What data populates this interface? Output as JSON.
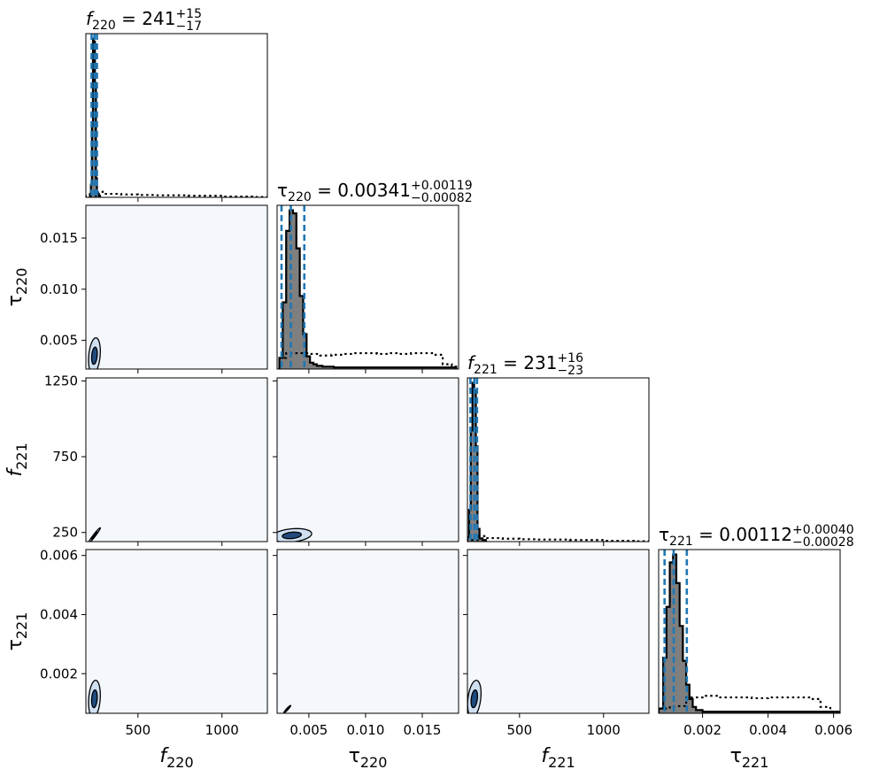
{
  "chart_data": {
    "type": "corner",
    "parameters": [
      {
        "id": "f220",
        "label_base": "f",
        "label_sub": "220",
        "italic": true,
        "range": [
          190,
          1270
        ],
        "ticks": [
          500,
          1000
        ],
        "tick_labels": [
          "500",
          "1000"
        ],
        "title_value": "241",
        "title_plus": "+15",
        "title_minus": "−17"
      },
      {
        "id": "tau220",
        "label_base": "τ",
        "label_sub": "220",
        "italic": false,
        "range": [
          0.0022,
          0.0182
        ],
        "ticks": [
          0.005,
          0.01,
          0.015
        ],
        "tick_labels": [
          "0.005",
          "0.010",
          "0.015"
        ],
        "title_value": "0.00341",
        "title_plus": "+0.00119",
        "title_minus": "−0.00082"
      },
      {
        "id": "f221",
        "label_base": "f",
        "label_sub": "221",
        "italic": true,
        "range": [
          190,
          1270
        ],
        "ticks": [
          250,
          750,
          1250
        ],
        "tick_labels": [
          "250",
          "750",
          "1250"
        ],
        "xticks": [
          500,
          1000
        ],
        "xtick_labels": [
          "500",
          "1000"
        ],
        "title_value": "231",
        "title_plus": "+16",
        "title_minus": "−23"
      },
      {
        "id": "tau221",
        "label_base": "τ",
        "label_sub": "221",
        "italic": false,
        "range": [
          0.00066,
          0.0062
        ],
        "ticks": [
          0.002,
          0.004,
          0.006
        ],
        "tick_labels": [
          "0.002",
          "0.004",
          "0.006"
        ],
        "title_value": "0.00112",
        "title_plus": "+0.00040",
        "title_minus": "−0.00028"
      }
    ],
    "diagonal": [
      {
        "param": "f220",
        "quantiles": [
          224,
          241,
          256
        ],
        "posterior_hist": {
          "edges": [
            214,
            220,
            226,
            232,
            238,
            244,
            250,
            256,
            262,
            268,
            274,
            280
          ],
          "heights": [
            0.02,
            0.08,
            0.45,
            1.0,
            0.98,
            0.72,
            0.12,
            0.03,
            0.02,
            0.01,
            0.0
          ]
        },
        "prior_hist": {
          "edges": [
            190,
            250,
            300,
            400,
            500,
            600,
            800,
            1000,
            1200,
            1270
          ],
          "heights": [
            0.01,
            0.035,
            0.022,
            0.018,
            0.015,
            0.013,
            0.01,
            0.005,
            0.002
          ]
        }
      },
      {
        "param": "tau220",
        "quantiles": [
          0.00259,
          0.00341,
          0.0046
        ],
        "posterior_hist": {
          "edges": [
            0.0024,
            0.0027,
            0.003,
            0.0033,
            0.0036,
            0.0039,
            0.0042,
            0.0045,
            0.0048,
            0.0051,
            0.0054,
            0.0057,
            0.0062,
            0.0072,
            0.009,
            0.013,
            0.018
          ],
          "heights": [
            0.07,
            0.42,
            0.87,
            1.0,
            0.98,
            0.76,
            0.46,
            0.22,
            0.08,
            0.04,
            0.03,
            0.02,
            0.015,
            0.01,
            0.01,
            0.01
          ]
        },
        "prior_hist": {
          "edges": [
            0.0024,
            0.003,
            0.004,
            0.005,
            0.006,
            0.007,
            0.008,
            0.009,
            0.01,
            0.011,
            0.012,
            0.013,
            0.014,
            0.015,
            0.016,
            0.0168,
            0.0176,
            0.018
          ],
          "heights": [
            0.07,
            0.1,
            0.1,
            0.095,
            0.085,
            0.09,
            0.095,
            0.1,
            0.1,
            0.095,
            0.1,
            0.095,
            0.1,
            0.1,
            0.09,
            0.03,
            0.015
          ]
        }
      },
      {
        "param": "f221",
        "quantiles": [
          208,
          231,
          247
        ],
        "posterior_hist": {
          "edges": [
            190,
            200,
            210,
            220,
            230,
            240,
            250,
            262,
            280,
            300
          ],
          "heights": [
            0.03,
            0.2,
            0.7,
            1.0,
            0.95,
            0.6,
            0.08,
            0.02,
            0.01
          ]
        },
        "prior_hist": {
          "edges": [
            190,
            250,
            300,
            400,
            500,
            600,
            800,
            1000,
            1200,
            1270
          ],
          "heights": [
            0.01,
            0.035,
            0.022,
            0.018,
            0.015,
            0.013,
            0.01,
            0.005,
            0.002
          ]
        }
      },
      {
        "param": "tau221",
        "quantiles": [
          0.00084,
          0.00112,
          0.00152
        ],
        "posterior_hist": {
          "edges": [
            0.00066,
            0.0008,
            0.0009,
            0.001,
            0.0011,
            0.0012,
            0.0013,
            0.0014,
            0.0015,
            0.0016,
            0.0017,
            0.0018,
            0.002,
            0.003,
            0.004,
            0.005,
            0.0062
          ],
          "heights": [
            0.03,
            0.35,
            0.67,
            0.95,
            1.0,
            0.82,
            0.55,
            0.33,
            0.18,
            0.09,
            0.04,
            0.02,
            0.01,
            0.01,
            0.01,
            0.01
          ]
        },
        "prior_hist": {
          "edges": [
            0.00066,
            0.001,
            0.0015,
            0.002,
            0.0025,
            0.003,
            0.0035,
            0.004,
            0.0045,
            0.005,
            0.0053,
            0.0056,
            0.0059,
            0.0062
          ],
          "heights": [
            0.03,
            0.045,
            0.1,
            0.11,
            0.1,
            0.1,
            0.095,
            0.1,
            0.1,
            0.1,
            0.09,
            0.04,
            0.01
          ]
        }
      }
    ],
    "contours": [
      {
        "row": 1,
        "col": 0,
        "center": [
          241,
          0.0035
        ],
        "sigma": [
          14,
          0.0007
        ],
        "rho": 0.25
      },
      {
        "row": 2,
        "col": 0,
        "center": [
          241,
          231
        ],
        "sigma": [
          14,
          20
        ],
        "rho": 0.97
      },
      {
        "row": 2,
        "col": 1,
        "center": [
          0.0035,
          231
        ],
        "sigma": [
          0.0007,
          18
        ],
        "rho": 0.25
      },
      {
        "row": 3,
        "col": 0,
        "center": [
          241,
          0.00115
        ],
        "sigma": [
          14,
          0.00025
        ],
        "rho": 0.2
      },
      {
        "row": 3,
        "col": 1,
        "center": [
          0.0031,
          0.0008
        ],
        "sigma": [
          0.00012,
          5e-05
        ],
        "rho": 0.95
      },
      {
        "row": 3,
        "col": 2,
        "center": [
          231,
          0.00115
        ],
        "sigma": [
          16,
          0.00025
        ],
        "rho": 0.3
      }
    ],
    "colors": {
      "posterior_fill": "#7f7f7f",
      "quantile_line": "#1f77b4",
      "panel_background": "#f4f8fd",
      "contour_inner": "#1e4a7e",
      "contour_outer": "#cfe0f2",
      "contour_line": "#000000"
    }
  }
}
